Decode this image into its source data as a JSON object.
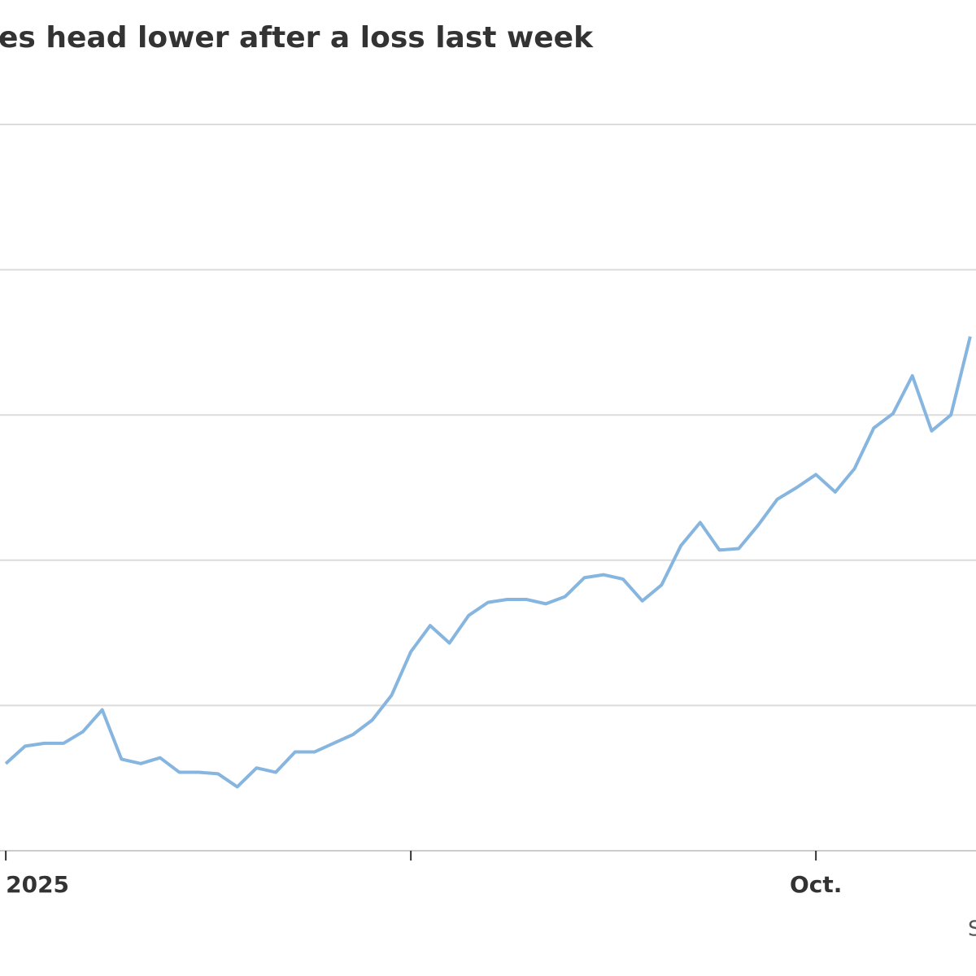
{
  "chart_data": {
    "type": "line",
    "title": "es head lower after a loss last week",
    "source": "S",
    "x": [
      0,
      1,
      2,
      3,
      4,
      5,
      6,
      7,
      8,
      9,
      10,
      11,
      12,
      13,
      14,
      15,
      16,
      17,
      18,
      19,
      20,
      21,
      22,
      23,
      24,
      25,
      26,
      27,
      28,
      29,
      30,
      31,
      32,
      33,
      34,
      35,
      36,
      37,
      38,
      39,
      40,
      41,
      42,
      43,
      44,
      45,
      46,
      47,
      48,
      49,
      50
    ],
    "series": [
      {
        "color": "#86b5df",
        "values": [
          0.6,
          0.72,
          0.74,
          0.74,
          0.82,
          0.97,
          0.63,
          0.6,
          0.64,
          0.54,
          0.54,
          0.53,
          0.44,
          0.57,
          0.54,
          0.68,
          0.68,
          0.74,
          0.8,
          0.9,
          1.07,
          1.37,
          1.55,
          1.43,
          1.62,
          1.71,
          1.73,
          1.73,
          1.7,
          1.75,
          1.88,
          1.9,
          1.87,
          1.72,
          1.83,
          2.1,
          2.26,
          2.07,
          2.08,
          2.24,
          2.42,
          2.5,
          2.59,
          2.47,
          2.63,
          2.91,
          3.01,
          3.27,
          2.89,
          3.0,
          3.54
        ]
      }
    ],
    "xlim": [
      -0.3,
      50.3
    ],
    "xticks": [
      {
        "value": 0,
        "label": "2025"
      },
      {
        "value": 21,
        "label": null
      },
      {
        "value": 42,
        "label": "Oct."
      }
    ],
    "ylim": [
      0,
      5
    ],
    "ygrid": [
      1,
      2,
      3,
      4,
      5
    ]
  }
}
